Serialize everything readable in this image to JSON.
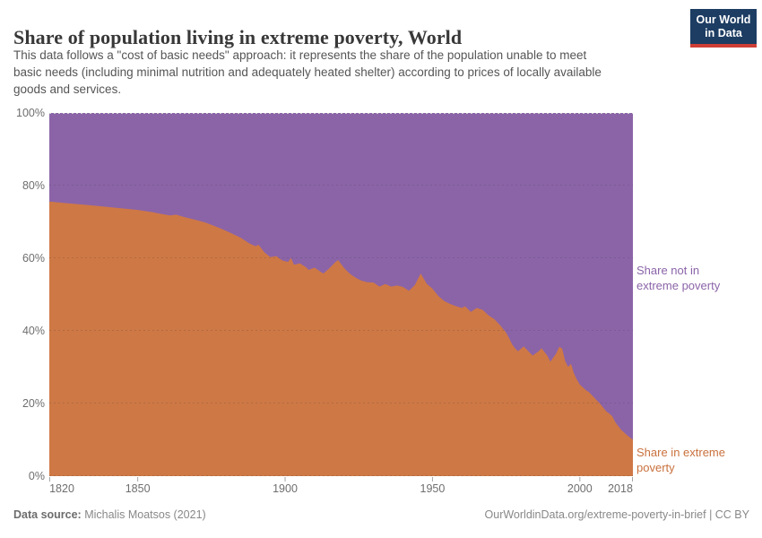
{
  "header": {
    "title": "Share of population living in extreme poverty, World",
    "subtitle_lines": [
      "This data follows a \"cost of basic needs\" approach: it represents the share of the population unable to meet",
      "basic needs (including minimal nutrition and adequately heated shelter) according to prices of locally available",
      "goods and services."
    ],
    "logo": {
      "line1": "Our World",
      "line2": "in Data",
      "bg_color": "#1d3d63",
      "accent_color": "#cf3e36"
    }
  },
  "chart_data": {
    "type": "area",
    "title": "Share of population living in extreme poverty, World",
    "stacking": "two series stacked to 100%",
    "xlim": [
      1820,
      2018
    ],
    "ylim": [
      0,
      100
    ],
    "grid": "horizontal dashed gridlines at 0/20/40/60/80/100%",
    "legend_position": "right of plot, colored text labels",
    "x_ticks": [
      "1820",
      "1850",
      "1900",
      "1950",
      "2000",
      "2018"
    ],
    "x_tick_years": [
      1820,
      1850,
      1900,
      1950,
      2000,
      2018
    ],
    "y_ticks": [
      "0%",
      "20%",
      "40%",
      "60%",
      "80%",
      "100%"
    ],
    "y_tick_values": [
      0,
      20,
      40,
      60,
      80,
      100
    ],
    "series": [
      {
        "name": "Share in extreme poverty",
        "color": "#ce7845",
        "points": [
          [
            1820,
            75.6
          ],
          [
            1825,
            75.2
          ],
          [
            1830,
            74.9
          ],
          [
            1835,
            74.5
          ],
          [
            1840,
            74.1
          ],
          [
            1845,
            73.7
          ],
          [
            1850,
            73.3
          ],
          [
            1855,
            72.7
          ],
          [
            1858,
            72.2
          ],
          [
            1861,
            71.8
          ],
          [
            1863,
            72.0
          ],
          [
            1866,
            71.3
          ],
          [
            1870,
            70.5
          ],
          [
            1873,
            69.8
          ],
          [
            1876,
            68.9
          ],
          [
            1879,
            67.9
          ],
          [
            1882,
            66.8
          ],
          [
            1885,
            65.6
          ],
          [
            1888,
            64.0
          ],
          [
            1890,
            63.3
          ],
          [
            1891,
            63.7
          ],
          [
            1893,
            61.6
          ],
          [
            1895,
            60.3
          ],
          [
            1897,
            60.6
          ],
          [
            1899,
            59.4
          ],
          [
            1901,
            59.0
          ],
          [
            1902,
            60.1
          ],
          [
            1903,
            58.2
          ],
          [
            1905,
            58.6
          ],
          [
            1907,
            57.6
          ],
          [
            1908,
            56.8
          ],
          [
            1910,
            57.4
          ],
          [
            1912,
            56.3
          ],
          [
            1913,
            55.8
          ],
          [
            1915,
            57.2
          ],
          [
            1917,
            58.9
          ],
          [
            1918,
            59.5
          ],
          [
            1920,
            57.3
          ],
          [
            1922,
            55.7
          ],
          [
            1924,
            54.6
          ],
          [
            1926,
            53.8
          ],
          [
            1928,
            53.4
          ],
          [
            1930,
            53.3
          ],
          [
            1932,
            52.2
          ],
          [
            1934,
            52.9
          ],
          [
            1936,
            52.2
          ],
          [
            1938,
            52.5
          ],
          [
            1940,
            52.1
          ],
          [
            1942,
            51.0
          ],
          [
            1944,
            52.6
          ],
          [
            1946,
            55.8
          ],
          [
            1948,
            53.0
          ],
          [
            1950,
            51.6
          ],
          [
            1952,
            49.6
          ],
          [
            1954,
            48.2
          ],
          [
            1956,
            47.4
          ],
          [
            1958,
            46.8
          ],
          [
            1960,
            46.3
          ],
          [
            1961,
            46.8
          ],
          [
            1963,
            45.2
          ],
          [
            1965,
            46.3
          ],
          [
            1967,
            45.8
          ],
          [
            1969,
            44.3
          ],
          [
            1971,
            43.2
          ],
          [
            1973,
            41.5
          ],
          [
            1975,
            39.5
          ],
          [
            1976,
            38.0
          ],
          [
            1977,
            36.3
          ],
          [
            1978,
            35.2
          ],
          [
            1979,
            34.4
          ],
          [
            1981,
            35.7
          ],
          [
            1983,
            34.0
          ],
          [
            1984,
            33.2
          ],
          [
            1986,
            34.4
          ],
          [
            1987,
            35.2
          ],
          [
            1989,
            33.1
          ],
          [
            1990,
            31.5
          ],
          [
            1992,
            33.8
          ],
          [
            1993,
            35.6
          ],
          [
            1994,
            35.1
          ],
          [
            1995,
            31.7
          ],
          [
            1996,
            30.1
          ],
          [
            1997,
            30.9
          ],
          [
            1998,
            28.3
          ],
          [
            1999,
            26.6
          ],
          [
            2000,
            25.2
          ],
          [
            2002,
            23.7
          ],
          [
            2003,
            23.2
          ],
          [
            2005,
            21.5
          ],
          [
            2007,
            19.8
          ],
          [
            2009,
            17.8
          ],
          [
            2010,
            17.2
          ],
          [
            2011,
            16.5
          ],
          [
            2012,
            14.9
          ],
          [
            2014,
            12.8
          ],
          [
            2016,
            11.3
          ],
          [
            2018,
            10.0
          ]
        ]
      },
      {
        "name": "Share not in extreme poverty",
        "color": "#8b64a8",
        "points_rule": "100 minus 'Share in extreme poverty' value at each year (stacked on top to 100%)"
      }
    ]
  },
  "legend": {
    "not_in_poverty": "Share not in extreme poverty",
    "in_poverty": "Share in extreme poverty"
  },
  "footer": {
    "source_label": "Data source:",
    "source_value": "Michalis Moatsos (2021)",
    "credit": "OurWorldinData.org/extreme-poverty-in-brief | CC BY"
  }
}
